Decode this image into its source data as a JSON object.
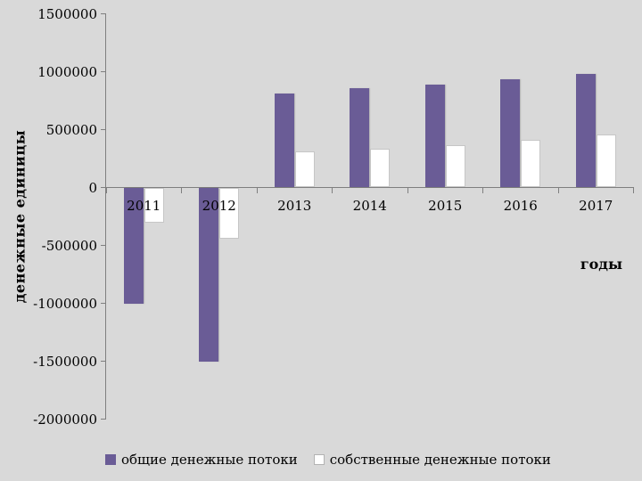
{
  "chart_data": {
    "type": "bar",
    "title": "",
    "categories": [
      "2011",
      "2012",
      "2013",
      "2014",
      "2015",
      "2016",
      "2017"
    ],
    "series": [
      {
        "name": "общие денежные потоки",
        "color": "#6a5c96",
        "values": [
          -1000000,
          -1500000,
          810000,
          855000,
          890000,
          935000,
          980000
        ]
      },
      {
        "name": "собственные денежные потоки",
        "color": "#ffffff",
        "values": [
          -300000,
          -440000,
          310000,
          335000,
          365000,
          410000,
          460000
        ]
      }
    ],
    "xlabel": "годы",
    "ylabel": "денежные единицы",
    "ylim": [
      -2000000,
      1500000
    ],
    "ytick_step": 500000,
    "ytick_labels": [
      "1500000",
      "1000000",
      "500000",
      "0",
      "-500000",
      "-1000000",
      "-1500000",
      "-2000000"
    ],
    "grid": false,
    "legend_position": "bottom"
  },
  "colors": {
    "background": "#d9d9d9",
    "axis": "#7f7f7f",
    "text": "#000000",
    "bar_total": "#6a5c96",
    "bar_own": "#ffffff"
  }
}
